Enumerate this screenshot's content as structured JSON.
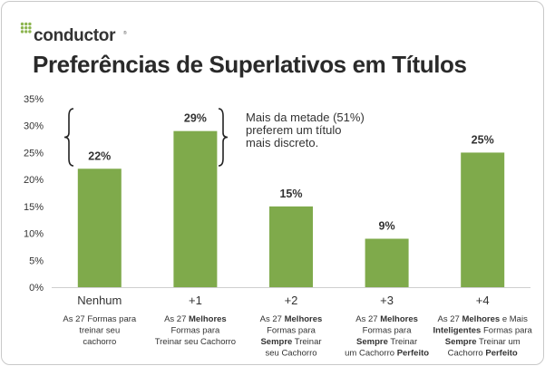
{
  "brand": {
    "name": "conductor",
    "trademark": "®",
    "dot_color": "#8db550"
  },
  "title": "Preferências de Superlativos em Títulos",
  "accent_color": "#7faa4b",
  "annotation": {
    "lines": [
      "Mais da metade (51%)",
      "preferem um título",
      "mais discreto."
    ]
  },
  "chart_data": {
    "type": "bar",
    "title": "Preferências de Superlativos em Títulos",
    "xlabel": "",
    "ylabel": "",
    "ylim": [
      0,
      35
    ],
    "y_ticks": [
      "0%",
      "5%",
      "10%",
      "15%",
      "20%",
      "25%",
      "30%",
      "35%"
    ],
    "grid": false,
    "legend": "none",
    "categories": [
      "Nenhum",
      "+1",
      "+2",
      "+3",
      "+4"
    ],
    "values": [
      22,
      29,
      15,
      9,
      25
    ],
    "data_labels": [
      "22%",
      "29%",
      "15%",
      "9%",
      "25%"
    ],
    "descriptions": [
      [
        [
          {
            "t": "As 27 Formas para",
            "b": false
          }
        ],
        [
          {
            "t": "treinar seu",
            "b": false
          }
        ],
        [
          {
            "t": "cachorro",
            "b": false
          }
        ]
      ],
      [
        [
          {
            "t": "As 27 ",
            "b": false
          },
          {
            "t": "Melhores",
            "b": true
          }
        ],
        [
          {
            "t": "Formas para",
            "b": false
          }
        ],
        [
          {
            "t": "Treinar seu Cachorro",
            "b": false
          }
        ]
      ],
      [
        [
          {
            "t": "As 27 ",
            "b": false
          },
          {
            "t": "Melhores",
            "b": true
          }
        ],
        [
          {
            "t": "Formas para",
            "b": false
          }
        ],
        [
          {
            "t": "Sempre",
            "b": true
          },
          {
            "t": " Treinar",
            "b": false
          }
        ],
        [
          {
            "t": "seu Cachorro",
            "b": false
          }
        ]
      ],
      [
        [
          {
            "t": "As 27 ",
            "b": false
          },
          {
            "t": "Melhores",
            "b": true
          }
        ],
        [
          {
            "t": "Formas para",
            "b": false
          }
        ],
        [
          {
            "t": "Sempre",
            "b": true
          },
          {
            "t": " Treinar",
            "b": false
          }
        ],
        [
          {
            "t": "um Cachorro ",
            "b": false
          },
          {
            "t": "Perfeito",
            "b": true
          }
        ]
      ],
      [
        [
          {
            "t": "As 27 ",
            "b": false
          },
          {
            "t": "Melhores",
            "b": true
          },
          {
            "t": " e Mais",
            "b": false
          }
        ],
        [
          {
            "t": "Inteligentes",
            "b": true
          },
          {
            "t": " Formas para",
            "b": false
          }
        ],
        [
          {
            "t": "Sempre",
            "b": true
          },
          {
            "t": " Treinar um",
            "b": false
          }
        ],
        [
          {
            "t": "Cachorro ",
            "b": false
          },
          {
            "t": "Perfeito",
            "b": true
          }
        ]
      ]
    ],
    "bar_color": "#7faa4b"
  }
}
